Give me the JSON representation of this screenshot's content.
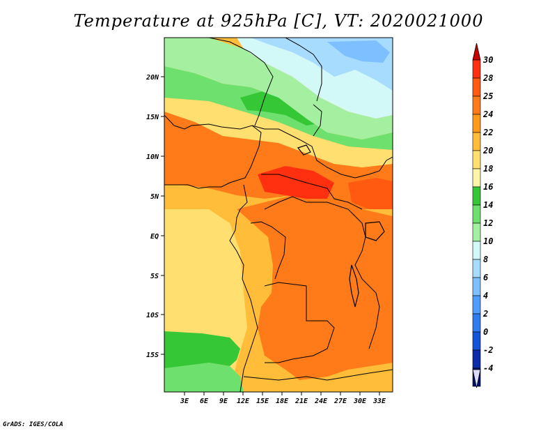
{
  "title": "Temperature at 925hPa [C], VT: 2020021000",
  "credit": "GrADS: IGES/COLA",
  "map": {
    "lat_ticks": [
      "20N",
      "15N",
      "10N",
      "5N",
      "EQ",
      "5S",
      "10S",
      "15S"
    ],
    "lon_ticks": [
      "3E",
      "6E",
      "9E",
      "12E",
      "15E",
      "18E",
      "21E",
      "24E",
      "27E",
      "30E",
      "33E"
    ],
    "variable": "Temperature",
    "level": "925hPa",
    "units": "C",
    "valid_time": "2020021000"
  },
  "colorbar": {
    "labels": [
      "30",
      "28",
      "25",
      "24",
      "22",
      "20",
      "18",
      "16",
      "14",
      "12",
      "10",
      "8",
      "6",
      "4",
      "2",
      "0",
      "-2",
      "-4"
    ],
    "colors": [
      "#ff3010",
      "#ff5a10",
      "#ff7a18",
      "#ff9a1a",
      "#ffbd3a",
      "#ffdf70",
      "#fff5a8",
      "#36c736",
      "#6ee06e",
      "#a4f0a0",
      "#d2f8f8",
      "#a8dcff",
      "#7ec0ff",
      "#4f9cff",
      "#2f7cf0",
      "#1454d8",
      "#0a2ca8",
      "#001070"
    ],
    "top_arrow_color": "#c80000",
    "bottom_arrow_color": "#dcdcf8"
  }
}
